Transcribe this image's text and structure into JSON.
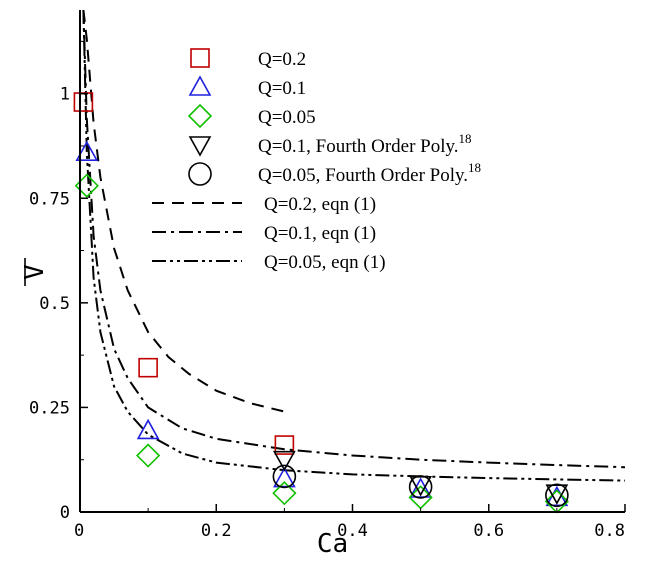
{
  "chart_data": {
    "type": "scatter",
    "xlabel": "Ca",
    "ylabel": "V",
    "ylabel_overline": true,
    "xlim": [
      0,
      0.8
    ],
    "ylim": [
      0,
      1.2
    ],
    "x_ticks": [
      0,
      0.2,
      0.4,
      0.6,
      0.8
    ],
    "x_tick_labels": [
      "0",
      "0.2",
      "0.4",
      "0.6",
      "0.8"
    ],
    "y_ticks": [
      0,
      0.25,
      0.5,
      0.75,
      1
    ],
    "y_tick_labels": [
      "0",
      "0.25",
      "0.5",
      "0.75",
      "1"
    ],
    "grid": false,
    "legend_position": "top-center",
    "series": [
      {
        "name": "Q=0.2",
        "marker": "square",
        "color": "#c00000",
        "x": [
          0.005,
          0.1,
          0.3
        ],
        "y": [
          0.98,
          0.345,
          0.16
        ]
      },
      {
        "name": "Q=0.1",
        "marker": "triangle-up",
        "color": "#2020e0",
        "x": [
          0.01,
          0.1,
          0.3,
          0.5,
          0.7
        ],
        "y": [
          0.86,
          0.195,
          0.08,
          0.055,
          0.035
        ]
      },
      {
        "name": "Q=0.05",
        "marker": "diamond",
        "color": "#10c000",
        "x": [
          0.01,
          0.1,
          0.3,
          0.5,
          0.7
        ],
        "y": [
          0.78,
          0.135,
          0.045,
          0.035,
          0.025
        ]
      },
      {
        "name": "Q=0.1, Fourth Order Poly.",
        "name_sup": "18",
        "marker": "triangle-down",
        "color": "#000000",
        "x": [
          0.3,
          0.5,
          0.7
        ],
        "y": [
          0.125,
          0.065,
          0.045
        ]
      },
      {
        "name": "Q=0.05, Fourth Order Poly.",
        "name_sup": "18",
        "marker": "circle",
        "color": "#000000",
        "x": [
          0.3,
          0.5,
          0.7
        ],
        "y": [
          0.085,
          0.06,
          0.04
        ]
      },
      {
        "name": "Q=0.2, eqn (1)",
        "line": "dashed",
        "color": "#000000",
        "x": [
          0.005,
          0.01,
          0.02,
          0.03,
          0.05,
          0.07,
          0.1,
          0.13,
          0.16,
          0.2,
          0.25,
          0.3
        ],
        "y": [
          1.2,
          1.13,
          0.93,
          0.8,
          0.63,
          0.53,
          0.43,
          0.37,
          0.33,
          0.29,
          0.26,
          0.24
        ]
      },
      {
        "name": "Q=0.1, eqn (1)",
        "line": "dash-dot",
        "color": "#000000",
        "x": [
          0.005,
          0.01,
          0.02,
          0.03,
          0.05,
          0.07,
          0.1,
          0.15,
          0.2,
          0.3,
          0.4,
          0.5,
          0.6,
          0.7,
          0.8
        ],
        "y": [
          1.2,
          0.94,
          0.66,
          0.53,
          0.39,
          0.32,
          0.25,
          0.2,
          0.175,
          0.15,
          0.135,
          0.125,
          0.118,
          0.112,
          0.107
        ]
      },
      {
        "name": "Q=0.05, eqn (1)",
        "line": "dash-dot-dot",
        "color": "#000000",
        "x": [
          0.005,
          0.01,
          0.02,
          0.03,
          0.05,
          0.07,
          0.1,
          0.15,
          0.2,
          0.3,
          0.4,
          0.5,
          0.6,
          0.7,
          0.8
        ],
        "y": [
          1.2,
          0.86,
          0.56,
          0.43,
          0.3,
          0.24,
          0.185,
          0.14,
          0.118,
          0.1,
          0.09,
          0.085,
          0.081,
          0.078,
          0.075
        ]
      }
    ]
  }
}
